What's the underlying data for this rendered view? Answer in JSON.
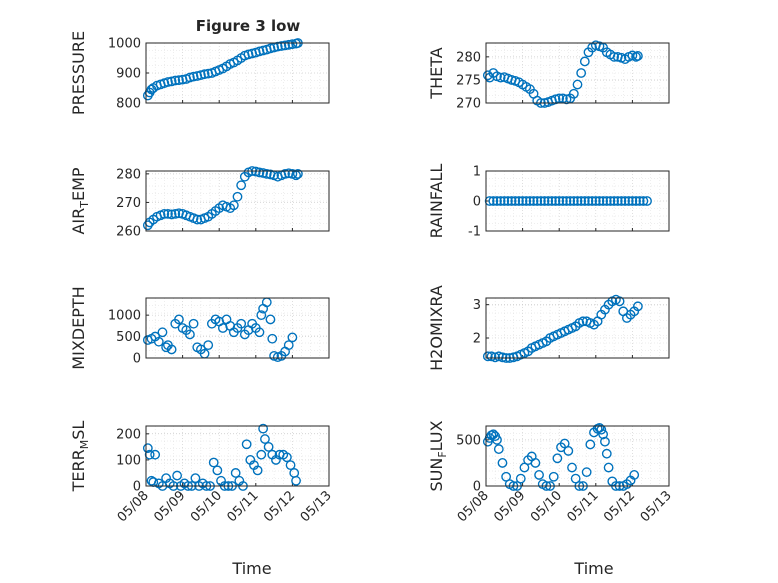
{
  "figure": {
    "title": "Figure 3 low",
    "xlabel": "Time"
  },
  "chart_data": [
    {
      "type": "scatter",
      "ylabel": "PRESSURE",
      "title": "Figure 3 low",
      "ylim": [
        800,
        1000
      ],
      "yticks": [
        800,
        900,
        1000
      ],
      "x_ticks": [
        "05/08",
        "05/09",
        "05/10",
        "05/11",
        "05/12",
        "05/13"
      ],
      "show_x_ticklabels": false,
      "grid": true,
      "color": "#0072BD",
      "x": [
        0.05,
        0.1,
        0.15,
        0.2,
        0.3,
        0.4,
        0.5,
        0.6,
        0.7,
        0.8,
        0.9,
        1.0,
        1.1,
        1.2,
        1.3,
        1.4,
        1.5,
        1.6,
        1.7,
        1.8,
        1.9,
        2.0,
        2.1,
        2.2,
        2.3,
        2.4,
        2.5,
        2.6,
        2.7,
        2.8,
        2.9,
        3.0,
        3.1,
        3.2,
        3.3,
        3.4,
        3.5,
        3.6,
        3.7,
        3.8,
        3.9,
        4.0,
        4.1,
        4.15
      ],
      "y": [
        825,
        835,
        845,
        850,
        858,
        862,
        866,
        870,
        872,
        875,
        876,
        878,
        880,
        885,
        888,
        890,
        893,
        896,
        898,
        900,
        905,
        910,
        915,
        922,
        930,
        935,
        942,
        950,
        958,
        962,
        965,
        968,
        972,
        975,
        978,
        982,
        985,
        988,
        990,
        992,
        994,
        996,
        998,
        1000
      ]
    },
    {
      "type": "scatter",
      "ylabel": "THETA",
      "ylim": [
        270,
        283
      ],
      "yticks": [
        270,
        275,
        280
      ],
      "x_ticks": [
        "05/08",
        "05/09",
        "05/10",
        "05/11",
        "05/12",
        "05/13"
      ],
      "show_x_ticklabels": false,
      "grid": true,
      "color": "#0072BD",
      "x": [
        0.05,
        0.1,
        0.2,
        0.3,
        0.4,
        0.5,
        0.6,
        0.7,
        0.8,
        0.9,
        1.0,
        1.1,
        1.2,
        1.3,
        1.4,
        1.5,
        1.6,
        1.7,
        1.8,
        1.9,
        2.0,
        2.1,
        2.2,
        2.3,
        2.4,
        2.5,
        2.6,
        2.7,
        2.8,
        2.9,
        3.0,
        3.1,
        3.2,
        3.3,
        3.4,
        3.5,
        3.6,
        3.7,
        3.8,
        3.9,
        4.0,
        4.1,
        4.15
      ],
      "y": [
        276,
        275.5,
        276.5,
        275.8,
        275.5,
        275.6,
        275.3,
        275.0,
        274.8,
        274.5,
        274.0,
        273.5,
        273.0,
        272.0,
        270.5,
        270.0,
        270.0,
        270.2,
        270.5,
        270.8,
        271.0,
        271.0,
        270.8,
        271.0,
        272.0,
        274.0,
        276.5,
        279.0,
        281.0,
        282.0,
        282.5,
        282.3,
        282.0,
        281.0,
        280.5,
        280.0,
        280.0,
        279.8,
        279.5,
        280.0,
        280.3,
        280.0,
        280.2
      ]
    },
    {
      "type": "scatter",
      "ylabel": "AIR_TEMP",
      "ylim": [
        260,
        281
      ],
      "yticks": [
        260,
        270,
        280
      ],
      "x_ticks": [
        "05/08",
        "05/09",
        "05/10",
        "05/11",
        "05/12",
        "05/13"
      ],
      "show_x_ticklabels": false,
      "grid": true,
      "color": "#0072BD",
      "x": [
        0.05,
        0.1,
        0.2,
        0.3,
        0.4,
        0.5,
        0.6,
        0.7,
        0.8,
        0.9,
        1.0,
        1.1,
        1.2,
        1.3,
        1.4,
        1.5,
        1.6,
        1.7,
        1.8,
        1.9,
        2.0,
        2.1,
        2.2,
        2.3,
        2.4,
        2.5,
        2.6,
        2.7,
        2.8,
        2.9,
        3.0,
        3.1,
        3.2,
        3.3,
        3.4,
        3.5,
        3.6,
        3.7,
        3.8,
        3.9,
        4.0,
        4.1,
        4.15
      ],
      "y": [
        262,
        263,
        264,
        265,
        265.5,
        266,
        266,
        265.8,
        266,
        266.2,
        266,
        265.5,
        265,
        264.5,
        264,
        264,
        264.5,
        265,
        266,
        267,
        268,
        269,
        268.5,
        268,
        269,
        272,
        276,
        279,
        280.5,
        281,
        280.8,
        280.5,
        280.3,
        280,
        279.8,
        279.5,
        279,
        279.5,
        280,
        280.2,
        280,
        279.5,
        280
      ]
    },
    {
      "type": "scatter",
      "ylabel": "RAINFALL",
      "ylim": [
        -1,
        1
      ],
      "yticks": [
        -1,
        0,
        1
      ],
      "x_ticks": [
        "05/08",
        "05/09",
        "05/10",
        "05/11",
        "05/12",
        "05/13"
      ],
      "show_x_ticklabels": false,
      "grid": true,
      "color": "#0072BD",
      "x": [
        0.1,
        0.2,
        0.3,
        0.4,
        0.5,
        0.6,
        0.7,
        0.8,
        0.9,
        1.0,
        1.1,
        1.2,
        1.3,
        1.4,
        1.5,
        1.6,
        1.7,
        1.8,
        1.9,
        2.0,
        2.1,
        2.2,
        2.3,
        2.4,
        2.5,
        2.6,
        2.7,
        2.8,
        2.9,
        3.0,
        3.1,
        3.2,
        3.3,
        3.4,
        3.5,
        3.6,
        3.7,
        3.8,
        3.9,
        4.0,
        4.1,
        4.2,
        4.3,
        4.4
      ],
      "y": [
        0,
        0,
        0,
        0,
        0,
        0,
        0,
        0,
        0,
        0,
        0,
        0,
        0,
        0,
        0,
        0,
        0,
        0,
        0,
        0,
        0,
        0,
        0,
        0,
        0,
        0,
        0,
        0,
        0,
        0,
        0,
        0,
        0,
        0,
        0,
        0,
        0,
        0,
        0,
        0,
        0,
        0,
        0,
        0
      ]
    },
    {
      "type": "scatter",
      "ylabel": "MIXDEPTH",
      "ylim": [
        0,
        1400
      ],
      "yticks": [
        0,
        500,
        1000
      ],
      "x_ticks": [
        "05/08",
        "05/09",
        "05/10",
        "05/11",
        "05/12",
        "05/13"
      ],
      "show_x_ticklabels": false,
      "grid": true,
      "color": "#0072BD",
      "x": [
        0.05,
        0.15,
        0.25,
        0.35,
        0.45,
        0.55,
        0.6,
        0.7,
        0.8,
        0.9,
        1.0,
        1.1,
        1.2,
        1.3,
        1.4,
        1.5,
        1.6,
        1.7,
        1.8,
        1.9,
        2.0,
        2.1,
        2.2,
        2.3,
        2.4,
        2.5,
        2.6,
        2.7,
        2.8,
        2.9,
        3.0,
        3.1,
        3.15,
        3.2,
        3.3,
        3.4,
        3.45,
        3.5,
        3.6,
        3.7,
        3.8,
        3.9,
        4.0
      ],
      "y": [
        420,
        450,
        500,
        380,
        600,
        250,
        300,
        200,
        800,
        900,
        700,
        650,
        550,
        800,
        250,
        200,
        100,
        300,
        800,
        900,
        850,
        700,
        900,
        750,
        600,
        700,
        800,
        550,
        650,
        800,
        700,
        600,
        1000,
        1150,
        1300,
        900,
        450,
        50,
        20,
        50,
        150,
        300,
        480
      ]
    },
    {
      "type": "scatter",
      "ylabel": "H2OMIXRA",
      "ylim": [
        1.4,
        3.2
      ],
      "yticks": [
        2,
        3
      ],
      "x_ticks": [
        "05/08",
        "05/09",
        "05/10",
        "05/11",
        "05/12",
        "05/13"
      ],
      "show_x_ticklabels": false,
      "grid": true,
      "color": "#0072BD",
      "x": [
        0.05,
        0.15,
        0.25,
        0.35,
        0.45,
        0.55,
        0.65,
        0.75,
        0.85,
        0.95,
        1.05,
        1.15,
        1.25,
        1.35,
        1.45,
        1.55,
        1.65,
        1.75,
        1.85,
        1.95,
        2.05,
        2.15,
        2.25,
        2.35,
        2.45,
        2.55,
        2.65,
        2.75,
        2.85,
        2.95,
        3.05,
        3.15,
        3.25,
        3.35,
        3.45,
        3.55,
        3.65,
        3.75,
        3.85,
        3.95,
        4.05,
        4.15
      ],
      "y": [
        1.45,
        1.45,
        1.42,
        1.45,
        1.42,
        1.4,
        1.4,
        1.42,
        1.45,
        1.5,
        1.55,
        1.6,
        1.7,
        1.75,
        1.8,
        1.85,
        1.9,
        2.0,
        2.05,
        2.1,
        2.15,
        2.2,
        2.25,
        2.3,
        2.35,
        2.45,
        2.5,
        2.5,
        2.45,
        2.4,
        2.5,
        2.7,
        2.85,
        3.0,
        3.1,
        3.15,
        3.1,
        2.8,
        2.6,
        2.7,
        2.8,
        2.95
      ]
    },
    {
      "type": "scatter",
      "ylabel": "TERR_MSL",
      "ylim": [
        0,
        230
      ],
      "yticks": [
        0,
        100,
        200
      ],
      "x_ticks": [
        "05/08",
        "05/09",
        "05/10",
        "05/11",
        "05/12",
        "05/13"
      ],
      "show_x_ticklabels": true,
      "grid": true,
      "color": "#0072BD",
      "x": [
        0.05,
        0.1,
        0.15,
        0.2,
        0.25,
        0.35,
        0.45,
        0.55,
        0.65,
        0.75,
        0.85,
        0.95,
        1.05,
        1.15,
        1.25,
        1.35,
        1.45,
        1.55,
        1.65,
        1.75,
        1.85,
        1.95,
        2.05,
        2.15,
        2.25,
        2.35,
        2.45,
        2.55,
        2.65,
        2.75,
        2.85,
        2.95,
        3.05,
        3.15,
        3.2,
        3.25,
        3.35,
        3.45,
        3.55,
        3.65,
        3.75,
        3.85,
        3.95,
        4.05,
        4.1
      ],
      "y": [
        145,
        120,
        20,
        15,
        120,
        10,
        0,
        30,
        10,
        0,
        40,
        0,
        10,
        0,
        0,
        30,
        0,
        10,
        0,
        0,
        90,
        60,
        20,
        0,
        0,
        0,
        50,
        20,
        0,
        160,
        100,
        80,
        60,
        120,
        220,
        180,
        150,
        120,
        100,
        120,
        120,
        110,
        80,
        50,
        20
      ]
    },
    {
      "type": "scatter",
      "ylabel": "SUN_FLUX",
      "ylim": [
        0,
        650
      ],
      "yticks": [
        0,
        500
      ],
      "x_ticks": [
        "05/08",
        "05/09",
        "05/10",
        "05/11",
        "05/12",
        "05/13"
      ],
      "show_x_ticklabels": true,
      "grid": true,
      "color": "#0072BD",
      "x": [
        0.05,
        0.1,
        0.15,
        0.2,
        0.25,
        0.3,
        0.35,
        0.45,
        0.55,
        0.65,
        0.75,
        0.85,
        0.95,
        1.05,
        1.15,
        1.25,
        1.35,
        1.45,
        1.55,
        1.65,
        1.75,
        1.85,
        1.95,
        2.05,
        2.15,
        2.25,
        2.35,
        2.45,
        2.55,
        2.65,
        2.75,
        2.85,
        2.95,
        3.05,
        3.1,
        3.15,
        3.2,
        3.25,
        3.3,
        3.35,
        3.45,
        3.55,
        3.65,
        3.75,
        3.85,
        3.95,
        4.05
      ],
      "y": [
        480,
        520,
        550,
        560,
        540,
        500,
        400,
        250,
        100,
        20,
        0,
        0,
        80,
        200,
        280,
        320,
        250,
        120,
        20,
        0,
        0,
        100,
        300,
        420,
        460,
        380,
        200,
        80,
        0,
        0,
        150,
        450,
        580,
        620,
        630,
        610,
        560,
        480,
        350,
        200,
        50,
        0,
        0,
        0,
        20,
        60,
        120
      ]
    }
  ]
}
